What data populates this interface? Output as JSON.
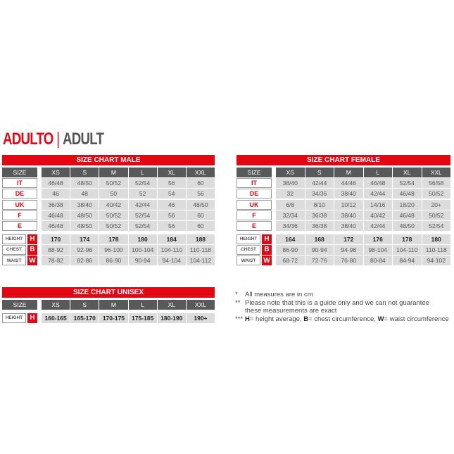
{
  "heading": {
    "primary": "ADULTO",
    "separator": "|",
    "secondary": "ADULT"
  },
  "sizes": [
    "XS",
    "S",
    "M",
    "L",
    "XL",
    "XXL"
  ],
  "size_label": "SIZE",
  "male": {
    "title": "SIZE CHART MALE",
    "countries": [
      {
        "label": "IT",
        "values": [
          "46/48",
          "48/50",
          "50/52",
          "52/54",
          "56",
          "60"
        ]
      },
      {
        "label": "DE",
        "values": [
          "46",
          "48",
          "50",
          "52",
          "54",
          "56"
        ]
      },
      {
        "label": "UK",
        "values": [
          "36/38",
          "38/40",
          "40/42",
          "42/44",
          "46",
          "48/50"
        ]
      },
      {
        "label": "F",
        "values": [
          "46/48",
          "48/50",
          "50/52",
          "52/54",
          "56",
          "60"
        ]
      },
      {
        "label": "E",
        "values": [
          "46/48",
          "48/50",
          "50/52",
          "52/54",
          "56",
          "60"
        ]
      }
    ],
    "measures": [
      {
        "label": "HEIGHT",
        "letter": "H",
        "values": [
          "170",
          "174",
          "178",
          "180",
          "184",
          "188"
        ]
      },
      {
        "label": "CHEST",
        "letter": "B",
        "values": [
          "88-92",
          "92-96",
          "96-100",
          "100-104",
          "104-110",
          "110-118"
        ]
      },
      {
        "label": "WAIST",
        "letter": "W",
        "values": [
          "78-82",
          "82-86",
          "86-90",
          "90-94",
          "94-104",
          "104-112"
        ]
      }
    ]
  },
  "female": {
    "title": "SIZE CHART FEMALE",
    "countries": [
      {
        "label": "IT",
        "values": [
          "38/40",
          "42/44",
          "44/46",
          "46/48",
          "52/54",
          "56/58"
        ]
      },
      {
        "label": "DE",
        "values": [
          "32",
          "34/36",
          "38/40",
          "42/44",
          "46/48",
          "50/52"
        ]
      },
      {
        "label": "UK",
        "values": [
          "6/8",
          "8/10",
          "10/12",
          "14/16",
          "18/20",
          "20+"
        ]
      },
      {
        "label": "F",
        "values": [
          "32/34",
          "36/38",
          "38/40",
          "40/42",
          "46/48",
          "50/52"
        ]
      },
      {
        "label": "E",
        "values": [
          "34/36",
          "36/38",
          "38/40",
          "42/44",
          "48/50",
          "52/54"
        ]
      }
    ],
    "measures": [
      {
        "label": "HEIGHT",
        "letter": "H",
        "values": [
          "164",
          "168",
          "172",
          "176",
          "178",
          "180"
        ]
      },
      {
        "label": "CHEST",
        "letter": "B",
        "values": [
          "86-90",
          "90-94",
          "94-98",
          "98-104",
          "104-110",
          "110-118"
        ]
      },
      {
        "label": "WAIST",
        "letter": "W",
        "values": [
          "68-72",
          "72-76",
          "76-80",
          "80-84",
          "84-94",
          "94-102"
        ]
      }
    ]
  },
  "unisex": {
    "title": "SIZE CHART UNISEX",
    "countries": [],
    "measures": [
      {
        "label": "HEIGHT",
        "letter": "H",
        "values": [
          "160-165",
          "165-170",
          "170-175",
          "175-185",
          "180-190",
          "190+"
        ]
      }
    ]
  },
  "notes": [
    {
      "mark": "*",
      "text": "All measures are in cm"
    },
    {
      "mark": "**",
      "text": "Please note that this is a guide only and we can not guarantee these measurements are exact"
    },
    {
      "mark": "***",
      "parts": [
        {
          "b": "H",
          "t": "= height average, "
        },
        {
          "b": "B",
          "t": "= chest circumference, "
        },
        {
          "b": "W",
          "t": "= waist circumference"
        }
      ]
    }
  ],
  "colors": {
    "accent": "#e30613",
    "header": "#58595b",
    "cell": "#dcdcdc"
  }
}
